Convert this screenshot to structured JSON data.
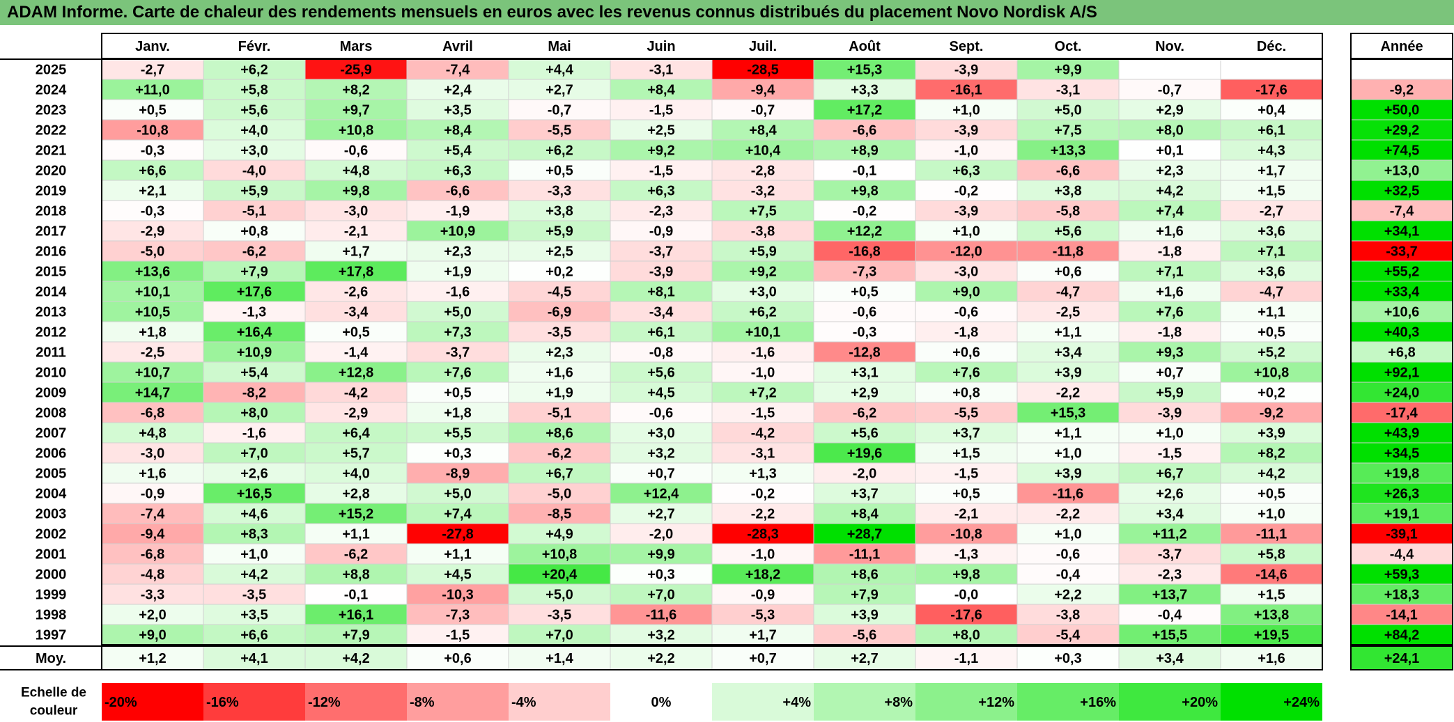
{
  "title": "ADAM Informe. Carte de chaleur des rendements mensuels en euros avec les revenus connus distribués du placement Novo Nordisk A/S",
  "chart_data": {
    "type": "heatmap",
    "title": "ADAM Informe. Carte de chaleur des rendements mensuels en euros avec les revenus connus distribués du placement Novo Nordisk A/S",
    "months": [
      "Janv.",
      "Févr.",
      "Mars",
      "Avril",
      "Mai",
      "Juin",
      "Juil.",
      "Août",
      "Sept.",
      "Oct.",
      "Nov.",
      "Déc."
    ],
    "year_header": "Année",
    "avg_label": "Moy.",
    "rows": [
      {
        "year": "2025",
        "values": [
          "-2,7",
          "+6,2",
          "-25,9",
          "-7,4",
          "+4,4",
          "-3,1",
          "-28,5",
          "+15,3",
          "-3,9",
          "+9,9",
          "",
          ""
        ],
        "annual": ""
      },
      {
        "year": "2024",
        "values": [
          "+11,0",
          "+5,8",
          "+8,2",
          "+2,4",
          "+2,7",
          "+8,4",
          "-9,4",
          "+3,3",
          "-16,1",
          "-3,1",
          "-0,7",
          "-17,6"
        ],
        "annual": "-9,2"
      },
      {
        "year": "2023",
        "values": [
          "+0,5",
          "+5,6",
          "+9,7",
          "+3,5",
          "-0,7",
          "-1,5",
          "-0,7",
          "+17,2",
          "+1,0",
          "+5,0",
          "+2,9",
          "+0,4"
        ],
        "annual": "+50,0"
      },
      {
        "year": "2022",
        "values": [
          "-10,8",
          "+4,0",
          "+10,8",
          "+8,4",
          "-5,5",
          "+2,5",
          "+8,4",
          "-6,6",
          "-3,9",
          "+7,5",
          "+8,0",
          "+6,1"
        ],
        "annual": "+29,2"
      },
      {
        "year": "2021",
        "values": [
          "-0,3",
          "+3,0",
          "-0,6",
          "+5,4",
          "+6,2",
          "+9,2",
          "+10,4",
          "+8,9",
          "-1,0",
          "+13,3",
          "+0,1",
          "+4,3"
        ],
        "annual": "+74,5"
      },
      {
        "year": "2020",
        "values": [
          "+6,6",
          "-4,0",
          "+4,8",
          "+6,3",
          "+0,5",
          "-1,5",
          "-2,8",
          "-0,1",
          "+6,3",
          "-6,6",
          "+2,3",
          "+1,7"
        ],
        "annual": "+13,0"
      },
      {
        "year": "2019",
        "values": [
          "+2,1",
          "+5,9",
          "+9,8",
          "-6,6",
          "-3,3",
          "+6,3",
          "-3,2",
          "+9,8",
          "-0,2",
          "+3,8",
          "+4,2",
          "+1,5"
        ],
        "annual": "+32,5"
      },
      {
        "year": "2018",
        "values": [
          "-0,3",
          "-5,1",
          "-3,0",
          "-1,9",
          "+3,8",
          "-2,3",
          "+7,5",
          "-0,2",
          "-3,9",
          "-5,8",
          "+7,4",
          "-2,7"
        ],
        "annual": "-7,4"
      },
      {
        "year": "2017",
        "values": [
          "-2,9",
          "+0,8",
          "-2,1",
          "+10,9",
          "+5,9",
          "-0,9",
          "-3,8",
          "+12,2",
          "+1,0",
          "+5,6",
          "+1,6",
          "+3,6"
        ],
        "annual": "+34,1"
      },
      {
        "year": "2016",
        "values": [
          "-5,0",
          "-6,2",
          "+1,7",
          "+2,3",
          "+2,5",
          "-3,7",
          "+5,9",
          "-16,8",
          "-12,0",
          "-11,8",
          "-1,8",
          "+7,1"
        ],
        "annual": "-33,7"
      },
      {
        "year": "2015",
        "values": [
          "+13,6",
          "+7,9",
          "+17,8",
          "+1,9",
          "+0,2",
          "-3,9",
          "+9,2",
          "-7,3",
          "-3,0",
          "+0,6",
          "+7,1",
          "+3,6"
        ],
        "annual": "+55,2"
      },
      {
        "year": "2014",
        "values": [
          "+10,1",
          "+17,6",
          "-2,6",
          "-1,6",
          "-4,5",
          "+8,1",
          "+3,0",
          "+0,5",
          "+9,0",
          "-4,7",
          "+1,6",
          "-4,7"
        ],
        "annual": "+33,4"
      },
      {
        "year": "2013",
        "values": [
          "+10,5",
          "-1,3",
          "-3,4",
          "+5,0",
          "-6,9",
          "-3,4",
          "+6,2",
          "-0,6",
          "-0,6",
          "-2,5",
          "+7,6",
          "+1,1"
        ],
        "annual": "+10,6"
      },
      {
        "year": "2012",
        "values": [
          "+1,8",
          "+16,4",
          "+0,5",
          "+7,3",
          "-3,5",
          "+6,1",
          "+10,1",
          "-0,3",
          "-1,8",
          "+1,1",
          "-1,8",
          "+0,5"
        ],
        "annual": "+40,3"
      },
      {
        "year": "2011",
        "values": [
          "-2,5",
          "+10,9",
          "-1,4",
          "-3,7",
          "+2,3",
          "-0,8",
          "-1,6",
          "-12,8",
          "+0,6",
          "+3,4",
          "+9,3",
          "+5,2"
        ],
        "annual": "+6,8"
      },
      {
        "year": "2010",
        "values": [
          "+10,7",
          "+5,4",
          "+12,8",
          "+7,6",
          "+1,6",
          "+5,6",
          "-1,0",
          "+3,1",
          "+7,6",
          "+3,9",
          "+0,7",
          "+10,8"
        ],
        "annual": "+92,1"
      },
      {
        "year": "2009",
        "values": [
          "+14,7",
          "-8,2",
          "-4,2",
          "+0,5",
          "+1,9",
          "+4,5",
          "+7,2",
          "+2,9",
          "+0,8",
          "-2,2",
          "+5,9",
          "+0,2"
        ],
        "annual": "+24,0"
      },
      {
        "year": "2008",
        "values": [
          "-6,8",
          "+8,0",
          "-2,9",
          "+1,8",
          "-5,1",
          "-0,6",
          "-1,5",
          "-6,2",
          "-5,5",
          "+15,3",
          "-3,9",
          "-9,2"
        ],
        "annual": "-17,4"
      },
      {
        "year": "2007",
        "values": [
          "+4,8",
          "-1,6",
          "+6,4",
          "+5,5",
          "+8,6",
          "+3,0",
          "-4,2",
          "+5,6",
          "+3,7",
          "+1,1",
          "+1,0",
          "+3,9"
        ],
        "annual": "+43,9"
      },
      {
        "year": "2006",
        "values": [
          "-3,0",
          "+7,0",
          "+5,7",
          "+0,3",
          "-6,2",
          "+3,2",
          "-3,1",
          "+19,6",
          "+1,5",
          "+1,0",
          "-1,5",
          "+8,2"
        ],
        "annual": "+34,5"
      },
      {
        "year": "2005",
        "values": [
          "+1,6",
          "+2,6",
          "+4,0",
          "-8,9",
          "+6,7",
          "+0,7",
          "+1,3",
          "-2,0",
          "-1,5",
          "+3,9",
          "+6,7",
          "+4,2"
        ],
        "annual": "+19,8"
      },
      {
        "year": "2004",
        "values": [
          "-0,9",
          "+16,5",
          "+2,8",
          "+5,0",
          "-5,0",
          "+12,4",
          "-0,2",
          "+3,7",
          "+0,5",
          "-11,6",
          "+2,6",
          "+0,5"
        ],
        "annual": "+26,3"
      },
      {
        "year": "2003",
        "values": [
          "-7,4",
          "+4,6",
          "+15,2",
          "+7,4",
          "-8,5",
          "+2,7",
          "-2,2",
          "+8,4",
          "-2,1",
          "-2,2",
          "+3,4",
          "+1,0"
        ],
        "annual": "+19,1"
      },
      {
        "year": "2002",
        "values": [
          "-9,4",
          "+8,3",
          "+1,1",
          "-27,8",
          "+4,9",
          "-2,0",
          "-28,3",
          "+28,7",
          "-10,8",
          "+1,0",
          "+11,2",
          "-11,1"
        ],
        "annual": "-39,1"
      },
      {
        "year": "2001",
        "values": [
          "-6,8",
          "+1,0",
          "-6,2",
          "+1,1",
          "+10,8",
          "+9,9",
          "-1,0",
          "-11,1",
          "-1,3",
          "-0,6",
          "-3,7",
          "+5,8"
        ],
        "annual": "-4,4"
      },
      {
        "year": "2000",
        "values": [
          "-4,8",
          "+4,2",
          "+8,8",
          "+4,5",
          "+20,4",
          "+0,3",
          "+18,2",
          "+8,6",
          "+9,8",
          "-0,4",
          "-2,3",
          "-14,6"
        ],
        "annual": "+59,3"
      },
      {
        "year": "1999",
        "values": [
          "-3,3",
          "-3,5",
          "-0,1",
          "-10,3",
          "+5,0",
          "+7,0",
          "-0,9",
          "+7,9",
          "-0,0",
          "+2,2",
          "+13,7",
          "+1,5"
        ],
        "annual": "+18,3"
      },
      {
        "year": "1998",
        "values": [
          "+2,0",
          "+3,5",
          "+16,1",
          "-7,3",
          "-3,5",
          "-11,6",
          "-5,3",
          "+3,9",
          "-17,6",
          "-3,8",
          "-0,4",
          "+13,8"
        ],
        "annual": "-14,1"
      },
      {
        "year": "1997",
        "values": [
          "+9,0",
          "+6,6",
          "+7,9",
          "-1,5",
          "+7,0",
          "+3,2",
          "+1,7",
          "-5,6",
          "+8,0",
          "-5,4",
          "+15,5",
          "+19,5"
        ],
        "annual": "+84,2"
      }
    ],
    "average": {
      "values": [
        "+1,2",
        "+4,1",
        "+4,2",
        "+0,6",
        "+1,4",
        "+2,2",
        "+0,7",
        "+2,7",
        "-1,1",
        "+0,3",
        "+3,4",
        "+1,6"
      ],
      "annual": "+24,1"
    },
    "scale": {
      "label_line1": "Echelle de",
      "label_line2": "couleur",
      "items": [
        {
          "label": "-20%",
          "value": -20,
          "color": "#ff0000"
        },
        {
          "label": "-16%",
          "value": -16,
          "color": "#ff3c3c"
        },
        {
          "label": "-12%",
          "value": -12,
          "color": "#ff6e6e"
        },
        {
          "label": "-8%",
          "value": -8,
          "color": "#ff9e9e"
        },
        {
          "label": "-4%",
          "value": -4,
          "color": "#ffcece"
        },
        {
          "label": "0%",
          "value": 0,
          "color": "#ffffff"
        },
        {
          "label": "+4%",
          "value": 4,
          "color": "#d9fad9"
        },
        {
          "label": "+8%",
          "value": 8,
          "color": "#b2f6b2"
        },
        {
          "label": "+12%",
          "value": 12,
          "color": "#8cf18c"
        },
        {
          "label": "+16%",
          "value": 16,
          "color": "#66ed66"
        },
        {
          "label": "+20%",
          "value": 20,
          "color": "#3fe83f"
        },
        {
          "label": "+24%",
          "value": 24,
          "color": "#00e000"
        }
      ]
    },
    "colors": {
      "negative_max": "#ff0000",
      "zero": "#ffffff",
      "positive_max": "#00e000",
      "title_bar": "#7bc47b"
    }
  }
}
